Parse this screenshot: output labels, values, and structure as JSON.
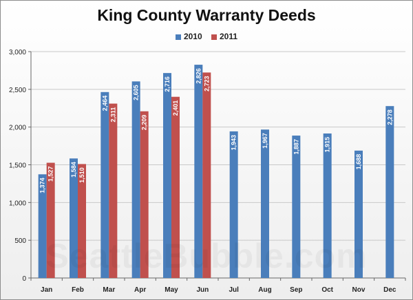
{
  "chart_data": {
    "type": "bar",
    "title": "King County Warranty Deeds",
    "categories": [
      "Jan",
      "Feb",
      "Mar",
      "Apr",
      "May",
      "Jun",
      "Jul",
      "Aug",
      "Sep",
      "Oct",
      "Nov",
      "Dec"
    ],
    "series": [
      {
        "name": "2010",
        "color": "#4a7ebb",
        "values": [
          1374,
          1584,
          2464,
          2605,
          2716,
          2826,
          1943,
          1967,
          1887,
          1915,
          1688,
          2278
        ],
        "labels": [
          "1,374",
          "1,584",
          "2,464",
          "2,605",
          "2,716",
          "2,826",
          "1,943",
          "1,967",
          "1,887",
          "1,915",
          "1,688",
          "2,278"
        ]
      },
      {
        "name": "2011",
        "color": "#c0504d",
        "values": [
          1527,
          1510,
          2311,
          2209,
          2401,
          2723,
          null,
          null,
          null,
          null,
          null,
          null
        ],
        "labels": [
          "1,527",
          "1,510",
          "2,311",
          "2,209",
          "2,401",
          "2,723",
          null,
          null,
          null,
          null,
          null,
          null
        ]
      }
    ],
    "ylim": [
      0,
      3000
    ],
    "yticks": [
      0,
      500,
      1000,
      1500,
      2000,
      2500,
      3000
    ],
    "ytick_labels": [
      "0",
      "500",
      "1,000",
      "1,500",
      "2,000",
      "2,500",
      "3,000"
    ],
    "xlabel": "",
    "ylabel": "",
    "grid": true,
    "legend_position": "top-center",
    "watermark": "SeattleBubble.com"
  }
}
